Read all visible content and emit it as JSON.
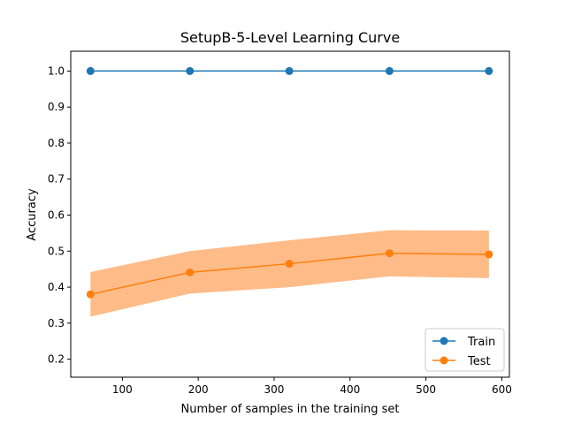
{
  "chart_data": {
    "type": "line",
    "title": "SetupB-5-Level Learning Curve",
    "xlabel": "Number of samples in the training set",
    "ylabel": "Accuracy",
    "xlim": [
      32,
      610
    ],
    "ylim": [
      0.15,
      1.055
    ],
    "x_ticks": [
      100,
      200,
      300,
      400,
      500,
      600
    ],
    "y_ticks": [
      0.2,
      0.3,
      0.4,
      0.5,
      0.6,
      0.7,
      0.8,
      0.9,
      1.0
    ],
    "x": [
      58,
      189,
      320,
      452,
      583
    ],
    "series": [
      {
        "name": "Train",
        "color": "#1f77b4",
        "marker": "circle",
        "values": [
          1.0,
          1.0,
          1.0,
          1.0,
          1.0
        ]
      },
      {
        "name": "Test",
        "color": "#ff7f0e",
        "band_color": "#ffbb88",
        "marker": "circle",
        "values": [
          0.38,
          0.441,
          0.465,
          0.494,
          0.491
        ],
        "band_lower": [
          0.318,
          0.382,
          0.4,
          0.43,
          0.425
        ],
        "band_upper": [
          0.442,
          0.5,
          0.53,
          0.558,
          0.557
        ]
      }
    ],
    "legend": {
      "position": "lower-right"
    },
    "grid": false
  }
}
